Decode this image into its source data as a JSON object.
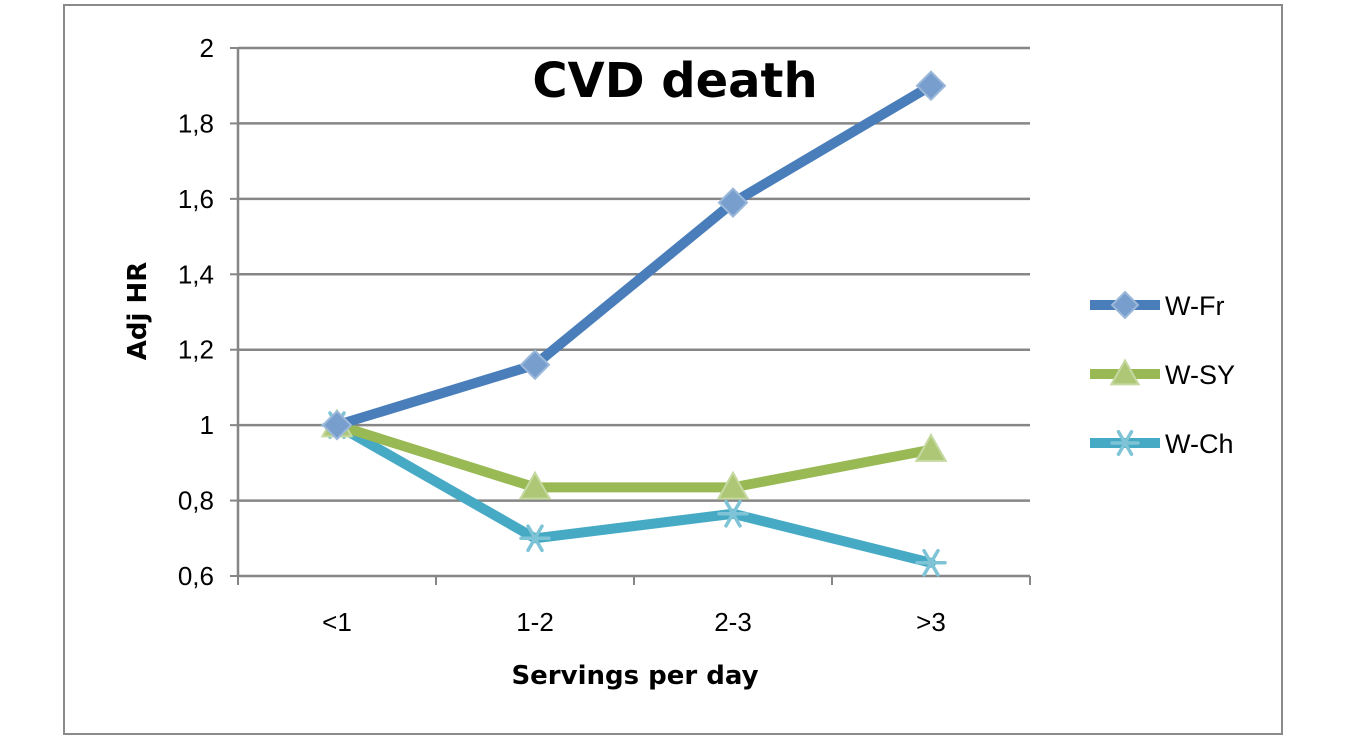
{
  "chart_data": {
    "type": "line",
    "title": "CVD death",
    "xlabel": "Servings per day",
    "ylabel": "Adj HR",
    "categories": [
      "<1",
      "1-2",
      "2-3",
      ">3"
    ],
    "ylim": [
      0.6,
      2
    ],
    "yticks": [
      {
        "value": 0.6,
        "label": "0,6"
      },
      {
        "value": 0.8,
        "label": "0,8"
      },
      {
        "value": 1.0,
        "label": "1"
      },
      {
        "value": 1.2,
        "label": "1,2"
      },
      {
        "value": 1.4,
        "label": "1,4"
      },
      {
        "value": 1.6,
        "label": "1,6"
      },
      {
        "value": 1.8,
        "label": "1,8"
      },
      {
        "value": 2.0,
        "label": "2"
      }
    ],
    "grid": true,
    "legend_position": "right",
    "series": [
      {
        "name": "W-Fr",
        "values": [
          1.0,
          1.16,
          1.59,
          1.9
        ],
        "color": "#4a7ebb",
        "marker": "diamond"
      },
      {
        "name": "W-SY",
        "values": [
          1.0,
          0.835,
          0.835,
          0.935
        ],
        "color": "#98b954",
        "marker": "triangle"
      },
      {
        "name": "W-Ch",
        "values": [
          1.0,
          0.7,
          0.765,
          0.635
        ],
        "color": "#46aac5",
        "marker": "star"
      }
    ]
  }
}
